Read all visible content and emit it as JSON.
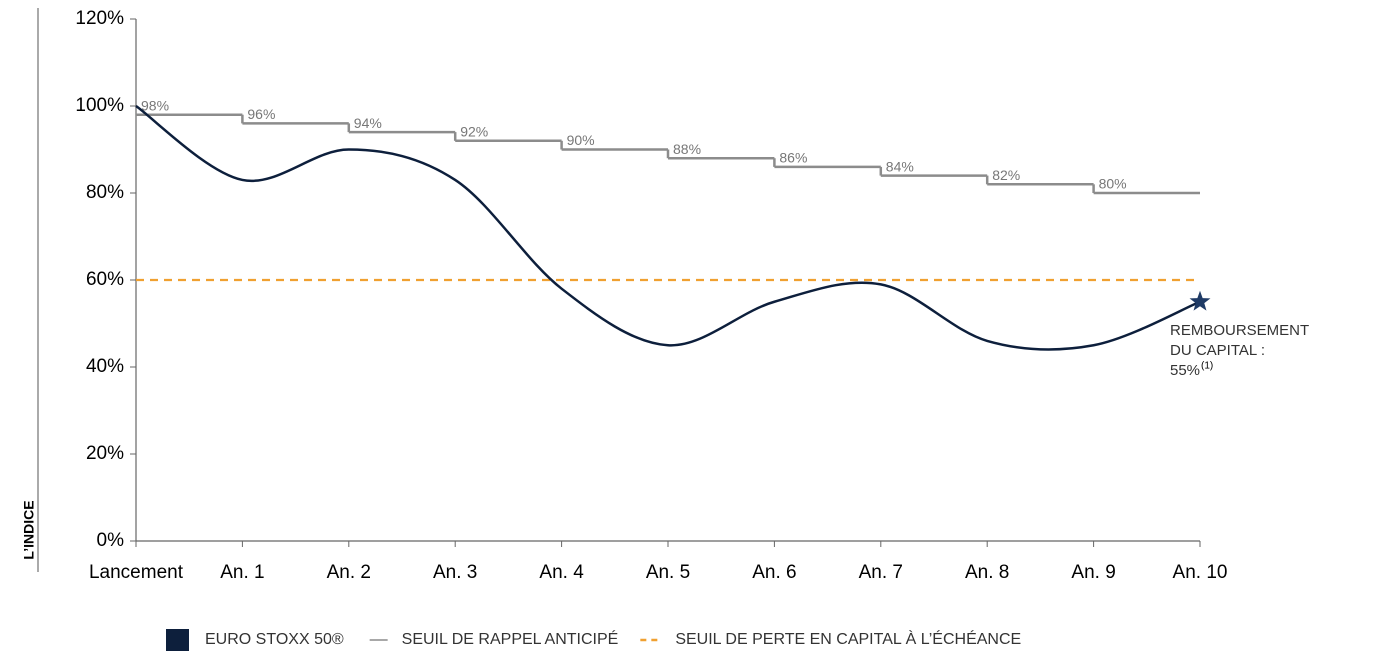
{
  "chart_data": {
    "type": "line",
    "categories": [
      "Lancement",
      "An. 1",
      "An. 2",
      "An. 3",
      "An. 4",
      "An. 5",
      "An. 6",
      "An. 7",
      "An. 8",
      "An. 9",
      "An. 10"
    ],
    "ylim": [
      0,
      120
    ],
    "yticks": [
      {
        "value": 0,
        "label": "0%"
      },
      {
        "value": 20,
        "label": "20%"
      },
      {
        "value": 40,
        "label": "40%"
      },
      {
        "value": 60,
        "label": "60%"
      },
      {
        "value": 80,
        "label": "80%"
      },
      {
        "value": 100,
        "label": "100%"
      },
      {
        "value": 120,
        "label": "120%"
      }
    ],
    "ylabel": "L’INDICE",
    "series": [
      {
        "name": "EURO STOXX 50®",
        "color": "#0d1f3c",
        "line_style": "smooth",
        "values": [
          100,
          83,
          90,
          83,
          58,
          45,
          55,
          59,
          46,
          45,
          55
        ]
      },
      {
        "name": "SEUIL DE RAPPEL ANTICIPÉ",
        "color": "#8c8c8c",
        "line_style": "step",
        "values": [
          98,
          96,
          94,
          92,
          90,
          88,
          86,
          84,
          82,
          80,
          null
        ],
        "value_labels": [
          "98%",
          "96%",
          "94%",
          "92%",
          "90%",
          "88%",
          "86%",
          "84%",
          "82%",
          "80%",
          null
        ]
      },
      {
        "name": "SEUIL DE PERTE EN CAPITAL À L’ÉCHÉANCE",
        "color": "#f0a030",
        "line_style": "dashed",
        "values": [
          60,
          60,
          60,
          60,
          60,
          60,
          60,
          60,
          60,
          60,
          60
        ]
      }
    ],
    "annotation": {
      "lines": [
        "REMBOURSEMENT",
        "DU CAPITAL :",
        "55%"
      ],
      "superscript": "(1)"
    }
  }
}
